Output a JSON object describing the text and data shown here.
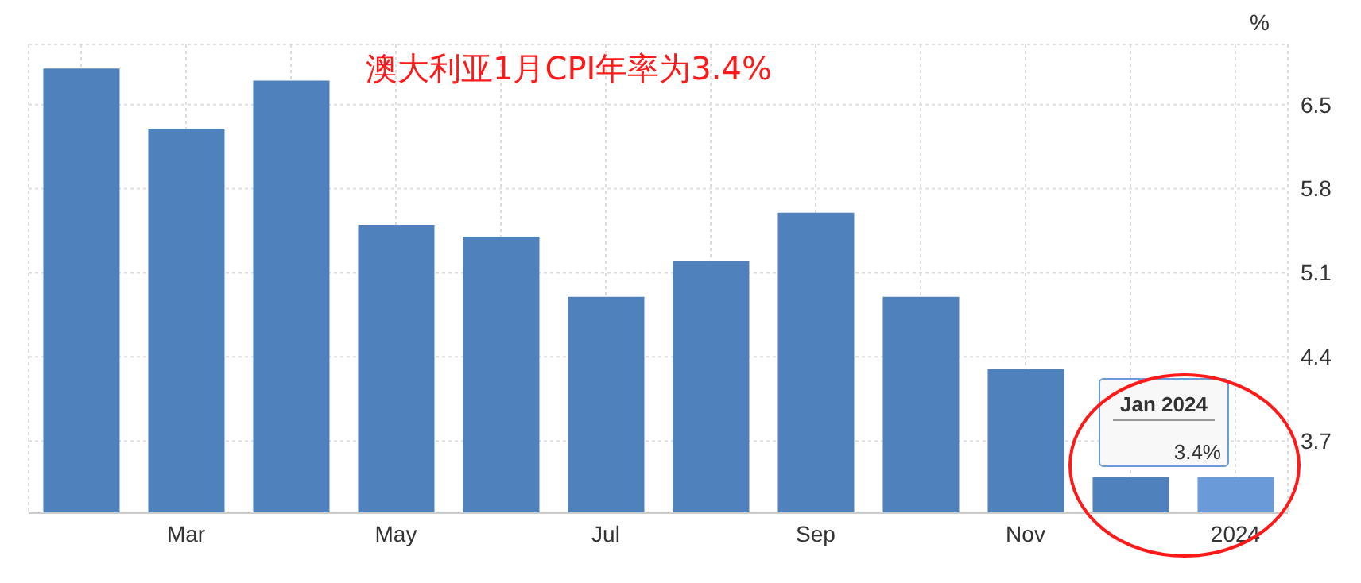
{
  "chart_data": {
    "type": "bar",
    "title": "澳大利亚1月CPI年率为3.4%",
    "ylabel": "%",
    "categories": [
      null,
      "Mar",
      null,
      "May",
      null,
      "Jul",
      null,
      "Sep",
      null,
      "Nov",
      null,
      "2024"
    ],
    "values": [
      6.8,
      6.3,
      6.7,
      5.5,
      5.4,
      4.9,
      5.2,
      5.6,
      4.9,
      4.3,
      3.4,
      3.4
    ],
    "colors": [
      "#4f81bd",
      "#4f81bd",
      "#4f81bd",
      "#4f81bd",
      "#4f81bd",
      "#4f81bd",
      "#4f81bd",
      "#4f81bd",
      "#4f81bd",
      "#4f81bd",
      "#4f81bd",
      "#6a9bd8"
    ],
    "ylim": [
      3.1,
      7.0
    ],
    "yticks": [
      3.7,
      4.4,
      5.1,
      5.8,
      6.5
    ],
    "grid": true,
    "legend": false,
    "annotations": [
      "Jan 2024",
      {
        "text": "3.4%",
        "x": "2024",
        "y": 3.4
      }
    ]
  }
}
